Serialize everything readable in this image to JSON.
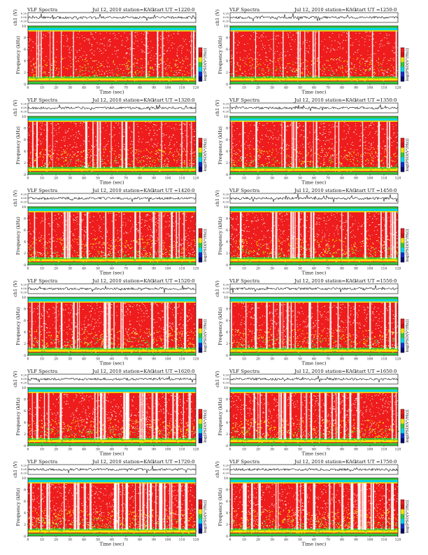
{
  "figure": {
    "header_prefix": "VLF Spectra",
    "ylabel_top": "ch1 (V)",
    "ylabel_spec": "Frequency (kHz)",
    "colorbar_label": "log(PSD(V²/Hz))",
    "xlabel": "Time (sec)"
  },
  "chart_data": [
    {
      "type": "heatmap",
      "title": "VLF Spectra",
      "date": "Jul 12, 2010",
      "station": "station=KAG",
      "start_ut": "start UT =1220:0",
      "variant": 0,
      "xlim": [
        0,
        120
      ],
      "xticks": [
        0,
        10,
        20,
        30,
        40,
        50,
        60,
        70,
        80,
        90,
        100,
        110,
        120
      ],
      "spec_ylim": [
        0,
        10
      ],
      "spec_yticks": [
        0,
        2,
        4,
        6,
        8,
        10
      ],
      "wave_yticks": [
        "0.20",
        "0.00",
        "-0.20"
      ]
    },
    {
      "type": "heatmap",
      "title": "VLF Spectra",
      "date": "Jul 12, 2010",
      "station": "station=KAG",
      "start_ut": "start UT =1250:0",
      "variant": 0,
      "xlim": [
        0,
        120
      ],
      "xticks": [
        0,
        10,
        20,
        30,
        40,
        50,
        60,
        70,
        80,
        90,
        100,
        110,
        120
      ],
      "spec_ylim": [
        0,
        10
      ],
      "spec_yticks": [
        0,
        2,
        4,
        6,
        8,
        10
      ],
      "wave_yticks": [
        "0.20",
        "0.00",
        "-0.20"
      ]
    },
    {
      "type": "heatmap",
      "title": "VLF Spectra",
      "date": "Jul 12, 2010",
      "station": "station=KAG",
      "start_ut": "start UT =1320:0",
      "variant": 1,
      "xlim": [
        0,
        120
      ],
      "xticks": [
        0,
        10,
        20,
        30,
        40,
        50,
        60,
        70,
        80,
        90,
        100,
        110,
        120
      ],
      "spec_ylim": [
        0,
        10
      ],
      "spec_yticks": [
        0,
        2,
        4,
        6,
        8,
        10
      ],
      "wave_yticks": [
        "0.20",
        "0.00",
        "-0.20"
      ]
    },
    {
      "type": "heatmap",
      "title": "VLF Spectra",
      "date": "Jul 12, 2010",
      "station": "station=KAG",
      "start_ut": "start UT =1350:0",
      "variant": 1,
      "xlim": [
        0,
        120
      ],
      "xticks": [
        0,
        10,
        20,
        30,
        40,
        50,
        60,
        70,
        80,
        90,
        100,
        110,
        120
      ],
      "spec_ylim": [
        0,
        10
      ],
      "spec_yticks": [
        0,
        2,
        4,
        6,
        8,
        10
      ],
      "wave_yticks": [
        "0.20",
        "0.00",
        "-0.20"
      ]
    },
    {
      "type": "heatmap",
      "title": "VLF Spectra",
      "date": "Jul 12, 2010",
      "station": "station=KAG",
      "start_ut": "start UT =1420:0",
      "variant": 2,
      "xlim": [
        0,
        120
      ],
      "xticks": [
        0,
        10,
        20,
        30,
        40,
        50,
        60,
        70,
        80,
        90,
        100,
        110,
        120
      ],
      "spec_ylim": [
        0,
        10
      ],
      "spec_yticks": [
        0,
        2,
        4,
        6,
        8,
        10
      ],
      "wave_yticks": [
        "0.20",
        "0.00",
        "-0.20"
      ]
    },
    {
      "type": "heatmap",
      "title": "VLF Spectra",
      "date": "Jul 12, 2010",
      "station": "station=KAG",
      "start_ut": "start UT =1450:0",
      "variant": 2,
      "xlim": [
        0,
        120
      ],
      "xticks": [
        0,
        10,
        20,
        30,
        40,
        50,
        60,
        70,
        80,
        90,
        100,
        110,
        120
      ],
      "spec_ylim": [
        0,
        10
      ],
      "spec_yticks": [
        0,
        2,
        4,
        6,
        8,
        10
      ],
      "wave_yticks": [
        "0.20",
        "0.00",
        "-0.20"
      ]
    },
    {
      "type": "heatmap",
      "title": "VLF Spectra",
      "date": "Jul 12, 2010",
      "station": "station=KAG",
      "start_ut": "start UT =1520:0",
      "variant": 2,
      "xlim": [
        0,
        120
      ],
      "xticks": [
        0,
        10,
        20,
        30,
        40,
        50,
        60,
        70,
        80,
        90,
        100,
        110,
        120
      ],
      "spec_ylim": [
        0,
        10
      ],
      "spec_yticks": [
        0,
        2,
        4,
        6,
        8,
        10
      ],
      "wave_yticks": [
        "0.20",
        "0.00",
        "-0.20"
      ]
    },
    {
      "type": "heatmap",
      "title": "VLF Spectra",
      "date": "Jul 12, 2010",
      "station": "station=KAG",
      "start_ut": "start UT =1550:0",
      "variant": 2,
      "xlim": [
        0,
        120
      ],
      "xticks": [
        0,
        10,
        20,
        30,
        40,
        50,
        60,
        70,
        80,
        90,
        100,
        110,
        120
      ],
      "spec_ylim": [
        0,
        10
      ],
      "spec_yticks": [
        0,
        2,
        4,
        6,
        8,
        10
      ],
      "wave_yticks": [
        "0.20",
        "0.00",
        "-0.20"
      ]
    },
    {
      "type": "heatmap",
      "title": "VLF Spectra",
      "date": "Jul 12, 2010",
      "station": "station=KAG",
      "start_ut": "start UT =1620:0",
      "variant": 3,
      "xlim": [
        0,
        120
      ],
      "xticks": [
        0,
        10,
        20,
        30,
        40,
        50,
        60,
        70,
        80,
        90,
        100,
        110,
        120
      ],
      "spec_ylim": [
        0,
        10
      ],
      "spec_yticks": [
        0,
        2,
        4,
        6,
        8,
        10
      ],
      "wave_yticks": [
        "0.20",
        "0.00",
        "-0.20"
      ]
    },
    {
      "type": "heatmap",
      "title": "VLF Spectra",
      "date": "Jul 12, 2010",
      "station": "station=KAG",
      "start_ut": "start UT =1650:0",
      "variant": 3,
      "xlim": [
        0,
        120
      ],
      "xticks": [
        0,
        10,
        20,
        30,
        40,
        50,
        60,
        70,
        80,
        90,
        100,
        110,
        120
      ],
      "spec_ylim": [
        0,
        10
      ],
      "spec_yticks": [
        0,
        2,
        4,
        6,
        8,
        10
      ],
      "wave_yticks": [
        "0.20",
        "0.00",
        "-0.20"
      ]
    },
    {
      "type": "heatmap",
      "title": "VLF Spectra",
      "date": "Jul 12, 2010",
      "station": "station=KAG",
      "start_ut": "start UT =1720:0",
      "variant": 4,
      "xlim": [
        0,
        120
      ],
      "xticks": [
        0,
        10,
        20,
        30,
        40,
        50,
        60,
        70,
        80,
        90,
        100,
        110,
        120
      ],
      "spec_ylim": [
        0,
        10
      ],
      "spec_yticks": [
        0,
        2,
        4,
        6,
        8,
        10
      ],
      "wave_yticks": [
        "0.20",
        "0.00",
        "-0.20"
      ]
    },
    {
      "type": "heatmap",
      "title": "VLF Spectra",
      "date": "Jul 12, 2010",
      "station": "station=KAG",
      "start_ut": "start UT =1750:0",
      "variant": 4,
      "xlim": [
        0,
        120
      ],
      "xticks": [
        0,
        10,
        20,
        30,
        40,
        50,
        60,
        70,
        80,
        90,
        100,
        110,
        120
      ],
      "spec_ylim": [
        0,
        10
      ],
      "spec_yticks": [
        0,
        2,
        4,
        6,
        8,
        10
      ],
      "wave_yticks": [
        "0.20",
        "0.00",
        "-0.20"
      ]
    }
  ],
  "colors": {
    "red": "#ee1c1c",
    "red_dark": "#d40f0f",
    "yellow": "#f2e600",
    "green": "#34c83a",
    "cyan": "#00d7e6",
    "blue": "#1230c8",
    "navy": "#050a6b",
    "white": "#ffffff"
  }
}
